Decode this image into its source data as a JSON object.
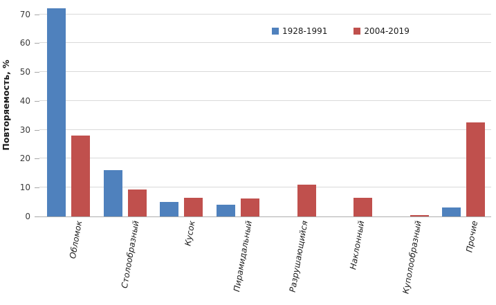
{
  "chart_data": {
    "type": "bar",
    "title": "",
    "xlabel": "",
    "ylabel": "Повторяемость, %",
    "categories": [
      "Обломок",
      "Столообразный",
      "Кусок",
      "Пирамидальный",
      "Разрушающийся",
      "Наклонный",
      "Куполообразный",
      "Прочие"
    ],
    "series": [
      {
        "name": "1928-1991",
        "color": "#4F81BD",
        "values": [
          72,
          16,
          5,
          4,
          0,
          0,
          0,
          3
        ]
      },
      {
        "name": "2004-2019",
        "color": "#C0504D",
        "values": [
          28,
          9.3,
          6.5,
          6.3,
          11,
          6.5,
          0.5,
          32.5
        ]
      }
    ],
    "ylim": [
      0,
      73
    ],
    "y_ticks": [
      0,
      10,
      20,
      30,
      40,
      50,
      60,
      70
    ],
    "grid": true,
    "legend_position": "top-center"
  },
  "style_colors": {
    "gridline": "#D9D9D9",
    "axis_line": "#ADADAD",
    "tick_mark": "#A6A6A6",
    "tick_text": "#3a3a3a",
    "label_text": "#1a1a1a"
  }
}
